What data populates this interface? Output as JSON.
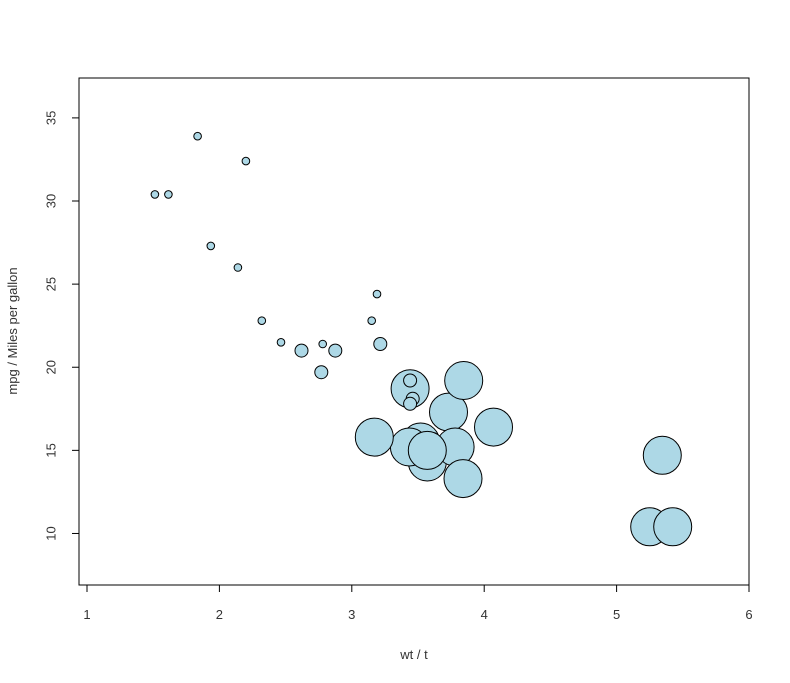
{
  "chart_data": {
    "type": "scatter",
    "title": "",
    "xlabel": "wt / t",
    "ylabel": "mpg / Miles per gallon",
    "xlim": [
      1,
      6
    ],
    "ylim": [
      6.9,
      37.4
    ],
    "x_ticks": [
      1,
      2,
      3,
      4,
      5,
      6
    ],
    "y_ticks": [
      10,
      15,
      20,
      25,
      30,
      35
    ],
    "x_tick_labels": [
      "1",
      "2",
      "3",
      "4",
      "5",
      "6"
    ],
    "y_tick_labels": [
      "10",
      "15",
      "20",
      "25",
      "30",
      "35"
    ],
    "grid": false,
    "legend": "none",
    "size_variable": "cyl",
    "colors": {
      "fill": "#add8e6",
      "stroke": "#000000"
    },
    "points": [
      {
        "x": 2.62,
        "y": 21.0,
        "size": 6
      },
      {
        "x": 2.875,
        "y": 21.0,
        "size": 6
      },
      {
        "x": 2.32,
        "y": 22.8,
        "size": 4
      },
      {
        "x": 3.215,
        "y": 21.4,
        "size": 6
      },
      {
        "x": 3.44,
        "y": 18.7,
        "size": 8
      },
      {
        "x": 3.46,
        "y": 18.1,
        "size": 6
      },
      {
        "x": 3.57,
        "y": 14.3,
        "size": 8
      },
      {
        "x": 3.19,
        "y": 24.4,
        "size": 4
      },
      {
        "x": 3.15,
        "y": 22.8,
        "size": 4
      },
      {
        "x": 3.44,
        "y": 19.2,
        "size": 6
      },
      {
        "x": 3.44,
        "y": 17.8,
        "size": 6
      },
      {
        "x": 4.07,
        "y": 16.4,
        "size": 8
      },
      {
        "x": 3.73,
        "y": 17.3,
        "size": 8
      },
      {
        "x": 3.78,
        "y": 15.2,
        "size": 8
      },
      {
        "x": 5.25,
        "y": 10.4,
        "size": 8
      },
      {
        "x": 5.424,
        "y": 10.4,
        "size": 8
      },
      {
        "x": 5.345,
        "y": 14.7,
        "size": 8
      },
      {
        "x": 2.2,
        "y": 32.4,
        "size": 4
      },
      {
        "x": 1.615,
        "y": 30.4,
        "size": 4
      },
      {
        "x": 1.835,
        "y": 33.9,
        "size": 4
      },
      {
        "x": 2.465,
        "y": 21.5,
        "size": 4
      },
      {
        "x": 3.52,
        "y": 15.5,
        "size": 8
      },
      {
        "x": 3.435,
        "y": 15.2,
        "size": 8
      },
      {
        "x": 3.84,
        "y": 13.3,
        "size": 8
      },
      {
        "x": 3.845,
        "y": 19.2,
        "size": 8
      },
      {
        "x": 1.935,
        "y": 27.3,
        "size": 4
      },
      {
        "x": 2.14,
        "y": 26.0,
        "size": 4
      },
      {
        "x": 1.513,
        "y": 30.4,
        "size": 4
      },
      {
        "x": 3.17,
        "y": 15.8,
        "size": 8
      },
      {
        "x": 2.77,
        "y": 19.7,
        "size": 6
      },
      {
        "x": 3.57,
        "y": 15.0,
        "size": 8
      },
      {
        "x": 2.78,
        "y": 21.4,
        "size": 4
      }
    ]
  }
}
